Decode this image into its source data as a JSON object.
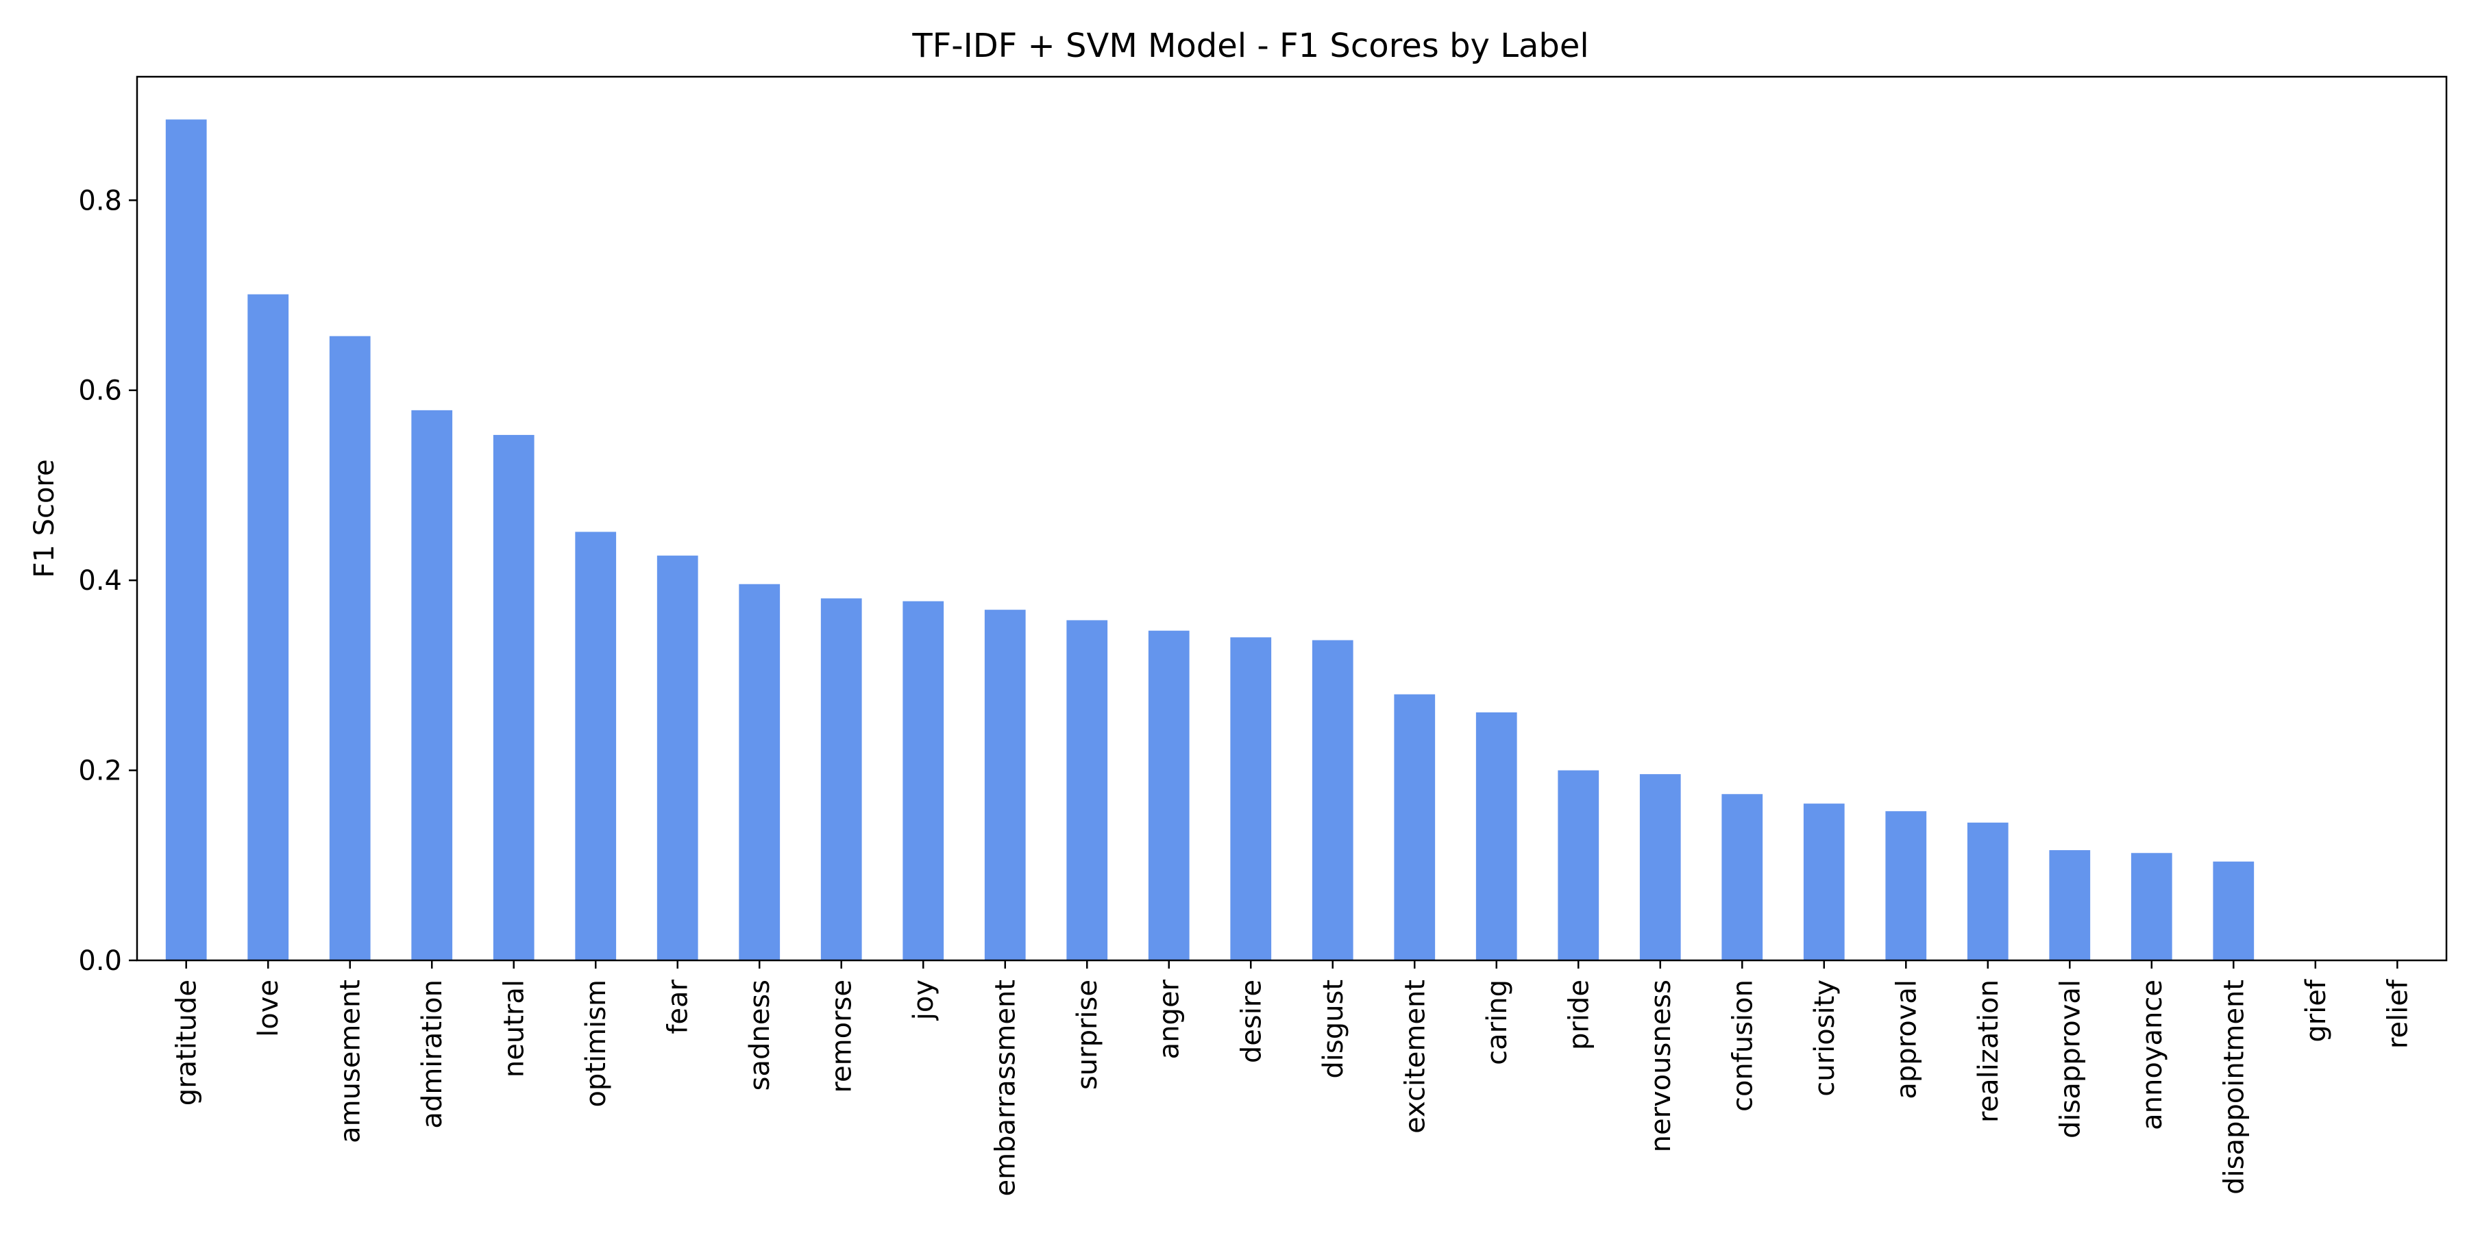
{
  "chart_data": {
    "type": "bar",
    "title": "TF-IDF + SVM Model - F1 Scores by Label",
    "xlabel": "",
    "ylabel": "F1 Score",
    "ylim": [
      0,
      0.93
    ],
    "yticks": [
      "0.0",
      "0.2",
      "0.4",
      "0.6",
      "0.8"
    ],
    "grid": false,
    "legend": "none",
    "bar_color": "#6495ED",
    "categories": [
      "gratitude",
      "love",
      "amusement",
      "admiration",
      "neutral",
      "optimism",
      "fear",
      "sadness",
      "remorse",
      "joy",
      "embarrassment",
      "surprise",
      "anger",
      "desire",
      "disgust",
      "excitement",
      "caring",
      "pride",
      "nervousness",
      "confusion",
      "curiosity",
      "approval",
      "realization",
      "disapproval",
      "annoyance",
      "disappointment",
      "grief",
      "relief"
    ],
    "values": [
      0.885,
      0.701,
      0.657,
      0.579,
      0.553,
      0.451,
      0.426,
      0.396,
      0.381,
      0.378,
      0.369,
      0.358,
      0.347,
      0.34,
      0.337,
      0.28,
      0.261,
      0.2,
      0.196,
      0.175,
      0.165,
      0.157,
      0.145,
      0.116,
      0.113,
      0.104,
      0.0,
      0.0
    ]
  }
}
